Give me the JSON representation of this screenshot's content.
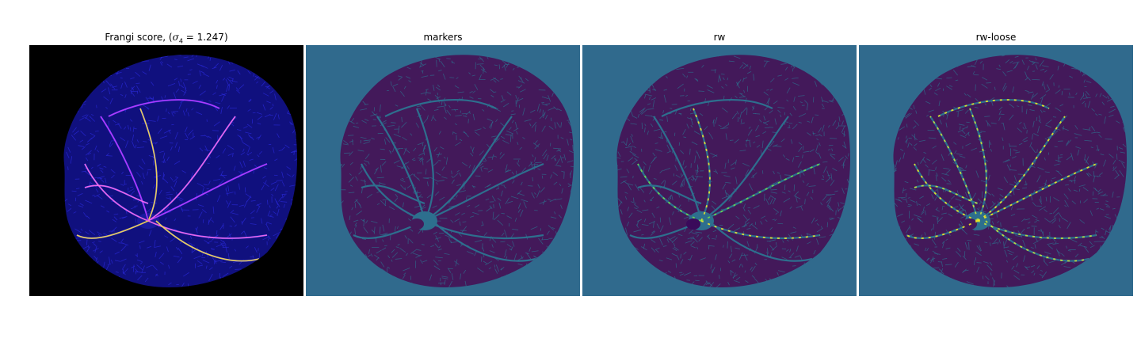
{
  "panels": [
    {
      "id": "frangi",
      "title_prefix": "Frangi score, (",
      "title_symbol": "σ",
      "title_sub": "4",
      "title_suffix": " = 1.247)",
      "background": "#000000",
      "fill": "#10107e",
      "texture": "#2a2ad8",
      "vessel": [
        "#ff6ee8",
        "#ffe14a",
        "#c03cff"
      ]
    },
    {
      "id": "markers",
      "title": "markers",
      "background": "#306a8d",
      "fill": "#43195a",
      "texture": "#2d6f8e",
      "vessel": []
    },
    {
      "id": "rw",
      "title": "rw",
      "background": "#306a8d",
      "fill": "#43195a",
      "texture": "#2d6f8e",
      "vessel": [
        "#6fd94e",
        "#f1e62c"
      ]
    },
    {
      "id": "rw-loose",
      "title": "rw-loose",
      "background": "#306a8d",
      "fill": "#43195a",
      "texture": "#2d6f8e",
      "vessel": [
        "#f4e91e",
        "#c9e43a"
      ]
    }
  ]
}
